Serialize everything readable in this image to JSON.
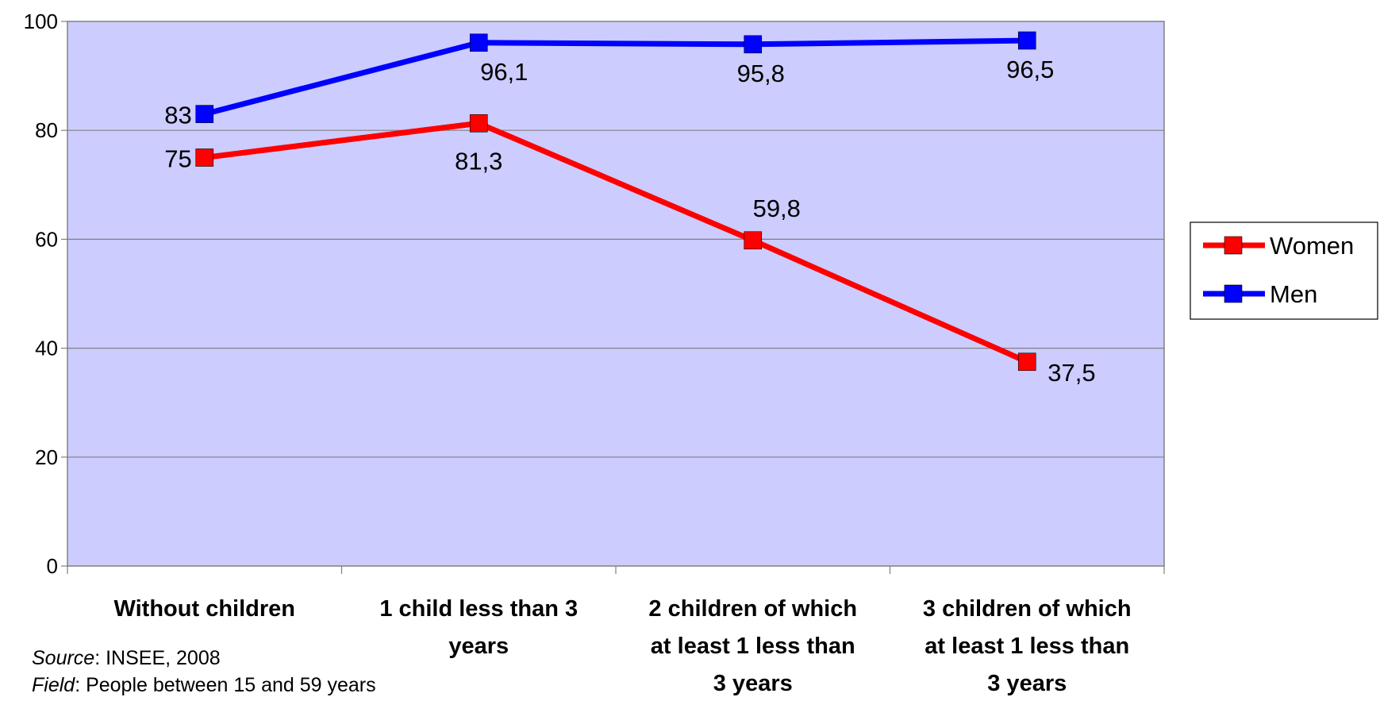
{
  "chart_data": {
    "type": "line",
    "categories": [
      [
        "Without children"
      ],
      [
        "1 child less than 3",
        "years"
      ],
      [
        "2 children of which",
        "at least 1 less than",
        "3 years"
      ],
      [
        "3 children of which",
        "at least 1 less than",
        "3 years"
      ]
    ],
    "series": [
      {
        "name": "Women",
        "color": "#ff0000",
        "values": [
          75,
          81.3,
          59.8,
          37.5
        ],
        "labels": [
          "75",
          "81,3",
          "59,8",
          "37,5"
        ]
      },
      {
        "name": "Men",
        "color": "#0000ff",
        "values": [
          83,
          96.1,
          95.8,
          96.5
        ],
        "labels": [
          "83",
          "96,1",
          "95,8",
          "96,5"
        ]
      }
    ],
    "ylim": [
      0,
      100
    ],
    "yticks": [
      0,
      20,
      40,
      60,
      80,
      100
    ],
    "plot_background": "#ccccff",
    "grid": true,
    "legend": "right"
  },
  "notes": {
    "source_label": "Source",
    "source_text": ": INSEE, 2008",
    "field_label": "Field",
    "field_text": ": People between 15 and 59 years"
  }
}
